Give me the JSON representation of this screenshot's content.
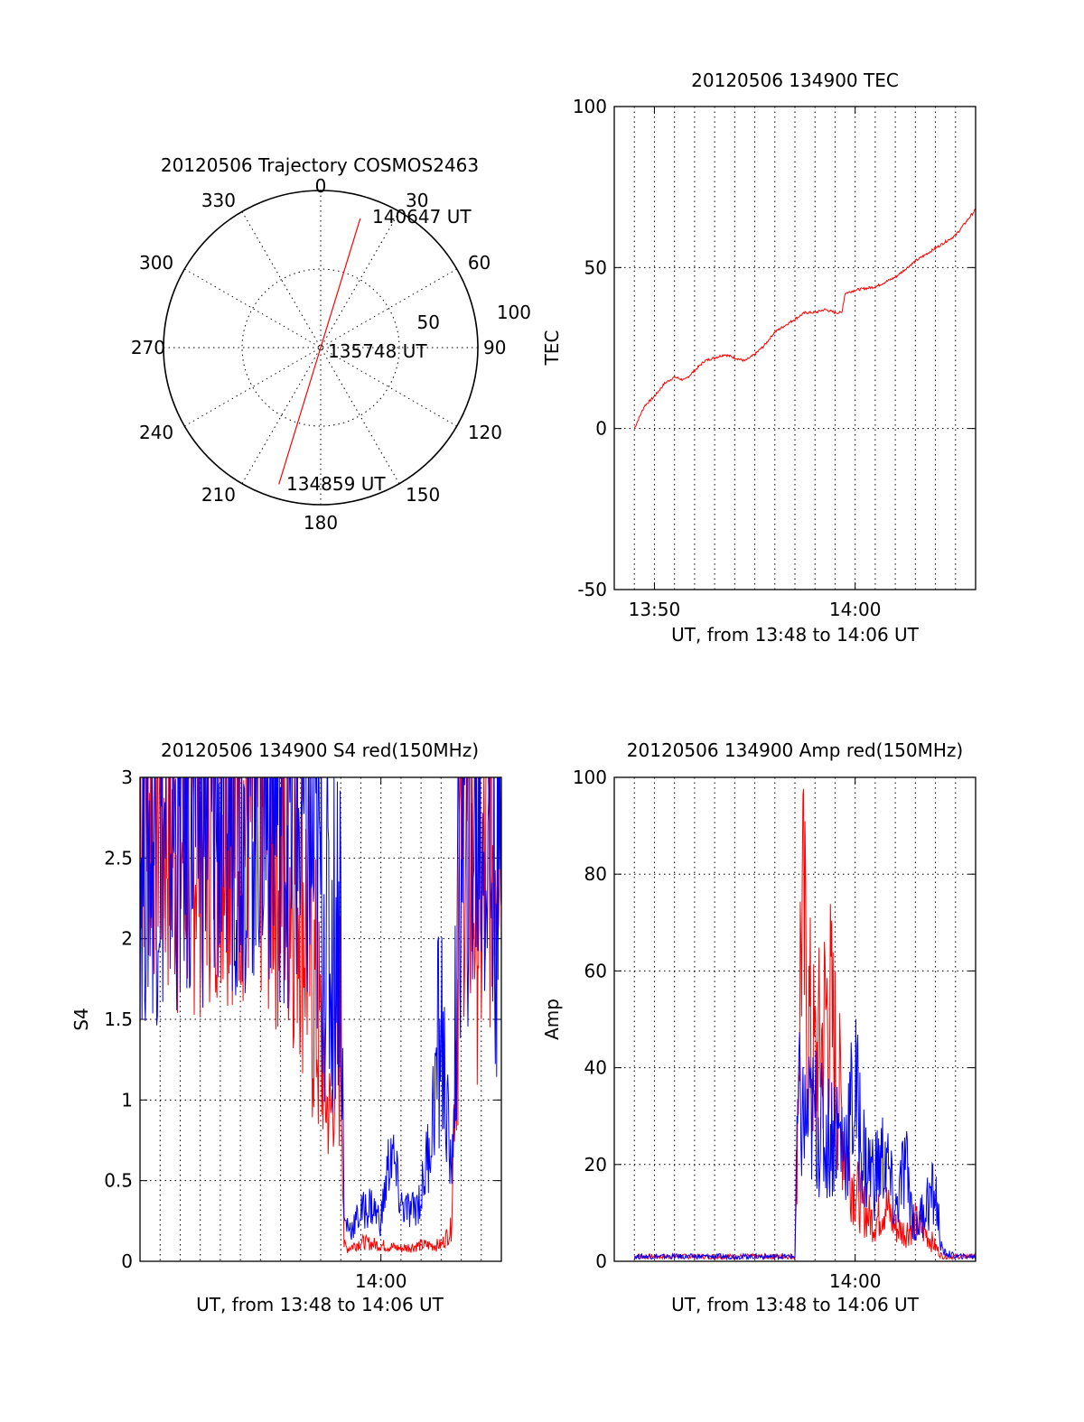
{
  "chart_data": [
    {
      "type": "polar",
      "title": "20120506 Trajectory COSMOS2463",
      "azimuth_labels": [
        "0",
        "30",
        "60",
        "90",
        "120",
        "150",
        "180",
        "210",
        "240",
        "270",
        "300",
        "330"
      ],
      "radial_labels": [
        "50",
        "100"
      ],
      "rlim": [
        0,
        100
      ],
      "track_color": "#ff0000",
      "track": [
        {
          "az": 197,
          "r": 91
        },
        {
          "az": 17,
          "r": 0
        },
        {
          "az": 17,
          "r": 86
        }
      ],
      "annotations": [
        "140647 UT",
        "135748 UT",
        "134859 UT"
      ]
    },
    {
      "type": "line",
      "title": "20120506 134900 TEC",
      "xlabel": "UT, from 13:48 to 14:06 UT",
      "ylabel": "TEC",
      "xlim": [
        "13:48",
        "14:06"
      ],
      "ylim": [
        -50,
        100
      ],
      "yticks": [
        "-50",
        "0",
        "50",
        "100"
      ],
      "xticks": [
        "13:50",
        "14:00"
      ],
      "grid": true,
      "series": [
        {
          "color": "#ff0000",
          "x": [
            "13:49:00",
            "13:49:30",
            "13:50:00",
            "13:50:30",
            "13:51:00",
            "13:51:30",
            "13:52:00",
            "13:52:30",
            "13:53:00",
            "13:53:30",
            "13:54:00",
            "13:54:30",
            "13:55:00",
            "13:55:30",
            "13:56:00",
            "13:56:30",
            "13:57:00",
            "13:57:30",
            "13:58:00",
            "13:58:30",
            "13:59:00",
            "13:59:20",
            "13:59:30",
            "14:00:00",
            "14:01:00",
            "14:02:00",
            "14:03:00",
            "14:04:00",
            "14:05:00",
            "14:06:00"
          ],
          "y": [
            0,
            7,
            10,
            14,
            16,
            15,
            18,
            21,
            22,
            23,
            22,
            21,
            23,
            26,
            30,
            32,
            34,
            36,
            36,
            37,
            36,
            36,
            42,
            43,
            44,
            47,
            52,
            56,
            60,
            68
          ]
        }
      ]
    },
    {
      "type": "line",
      "title": "20120506 134900 S4 red(150MHz)",
      "xlabel": "UT, from 13:48 to 14:06 UT",
      "ylabel": "S4",
      "xlim": [
        "13:48",
        "14:06"
      ],
      "ylim": [
        0,
        3
      ],
      "yticks": [
        "0",
        "0.5",
        "1",
        "1.5",
        "2",
        "2.5",
        "3"
      ],
      "xticks": [
        "14:00"
      ],
      "grid": true,
      "series": [
        {
          "color": "#ff0000",
          "x": [
            "13:48:00",
            "13:50:00",
            "13:52:00",
            "13:54:00",
            "13:56:00",
            "13:56:45",
            "13:57:15",
            "13:57:30",
            "13:58:00",
            "13:58:10",
            "13:58:20",
            "13:59:00",
            "14:00:00",
            "14:01:00",
            "14:02:00",
            "14:03:00",
            "14:03:30",
            "14:04:00",
            "14:04:20",
            "14:05:00",
            "14:06:00"
          ],
          "y": [
            3,
            2.6,
            2.8,
            2.7,
            2.4,
            1.6,
            1.0,
            0.9,
            1.5,
            0.1,
            0.08,
            0.12,
            0.1,
            0.08,
            0.1,
            0.1,
            0.2,
            2.8,
            2.5,
            2.2,
            3
          ]
        },
        {
          "color": "#0000ff",
          "x": [
            "13:48:00",
            "13:50:00",
            "13:52:00",
            "13:54:00",
            "13:56:00",
            "13:57:00",
            "13:57:30",
            "13:58:00",
            "13:58:10",
            "13:58:30",
            "13:59:00",
            "13:59:30",
            "14:00:00",
            "14:00:30",
            "14:01:00",
            "14:01:30",
            "14:02:00",
            "14:02:30",
            "14:03:00",
            "14:03:30",
            "14:04:00",
            "14:05:00",
            "14:06:00"
          ],
          "y": [
            2.6,
            2.7,
            2.8,
            2.9,
            2.7,
            2.3,
            1.9,
            2.3,
            0.25,
            0.2,
            0.3,
            0.35,
            0.25,
            0.7,
            0.35,
            0.3,
            0.4,
            0.8,
            1.5,
            0.5,
            2.6,
            2.7,
            2.2
          ]
        }
      ]
    },
    {
      "type": "line",
      "title": "20120506 134900 Amp red(150MHz)",
      "xlabel": "UT, from 13:48 to 14:06 UT",
      "ylabel": "Amp",
      "xlim": [
        "13:48",
        "14:06"
      ],
      "ylim": [
        0,
        100
      ],
      "yticks": [
        "0",
        "20",
        "40",
        "60",
        "80",
        "100"
      ],
      "xticks": [
        "14:00"
      ],
      "grid": true,
      "series": [
        {
          "color": "#ff0000",
          "x": [
            "13:49:00",
            "13:57:00",
            "13:57:10",
            "13:57:20",
            "13:57:40",
            "13:58:00",
            "13:58:20",
            "13:58:40",
            "13:59:00",
            "13:59:20",
            "13:59:40",
            "14:00:00",
            "14:00:30",
            "14:01:00",
            "14:01:30",
            "14:02:00",
            "14:02:30",
            "14:03:00",
            "14:03:30",
            "14:04:00",
            "14:04:20",
            "14:05:00",
            "14:06:00"
          ],
          "y": [
            1,
            1,
            40,
            72,
            50,
            40,
            45,
            54,
            42,
            30,
            20,
            15,
            10,
            8,
            12,
            7,
            6,
            8,
            6,
            3,
            1,
            1,
            1
          ]
        },
        {
          "color": "#0000ff",
          "x": [
            "13:49:00",
            "13:55:00",
            "13:57:00",
            "13:57:10",
            "13:57:30",
            "13:58:00",
            "13:58:30",
            "13:59:00",
            "13:59:30",
            "14:00:00",
            "14:00:30",
            "14:01:00",
            "14:01:30",
            "14:02:00",
            "14:02:30",
            "14:03:00",
            "14:03:30",
            "14:04:00",
            "14:04:20",
            "14:05:00",
            "14:06:00"
          ],
          "y": [
            1,
            1,
            1,
            32,
            28,
            30,
            25,
            28,
            24,
            35,
            20,
            18,
            22,
            10,
            20,
            6,
            12,
            14,
            2,
            1,
            1
          ]
        }
      ]
    }
  ]
}
